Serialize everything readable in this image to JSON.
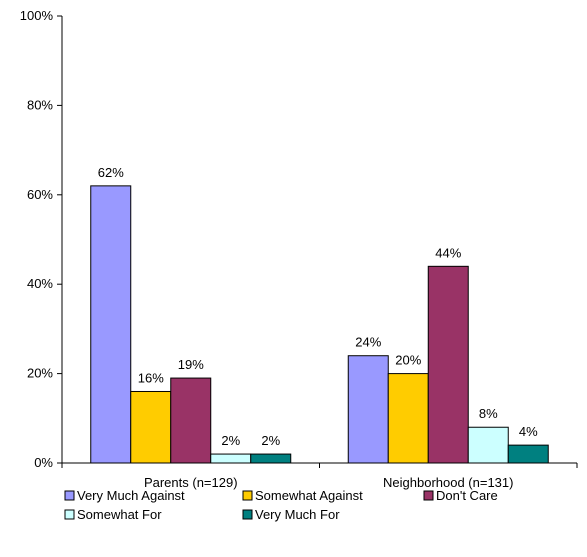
{
  "chart_data": {
    "type": "bar",
    "categories": [
      "Parents (n=129)",
      "Neighborhood (n=131)"
    ],
    "series": [
      {
        "name": "Very Much Against",
        "color": "#9999ff",
        "values": [
          62,
          24
        ],
        "labels": [
          "62%",
          "24%"
        ]
      },
      {
        "name": "Somewhat Against",
        "color": "#ffcc00",
        "values": [
          16,
          20
        ],
        "labels": [
          "16%",
          "20%"
        ]
      },
      {
        "name": "Don't Care",
        "color": "#993366",
        "values": [
          19,
          44
        ],
        "labels": [
          "19%",
          "44%"
        ]
      },
      {
        "name": "Somewhat For",
        "color": "#ccffff",
        "values": [
          2,
          8
        ],
        "labels": [
          "2%",
          "8%"
        ]
      },
      {
        "name": "Very Much For",
        "color": "#008080",
        "values": [
          2,
          4
        ],
        "labels": [
          "2%",
          "4%"
        ]
      }
    ],
    "ylim": [
      0,
      100
    ],
    "yticks": [
      "0%",
      "20%",
      "40%",
      "60%",
      "80%",
      "100%"
    ],
    "grid": false,
    "legend_position": "bottom"
  }
}
